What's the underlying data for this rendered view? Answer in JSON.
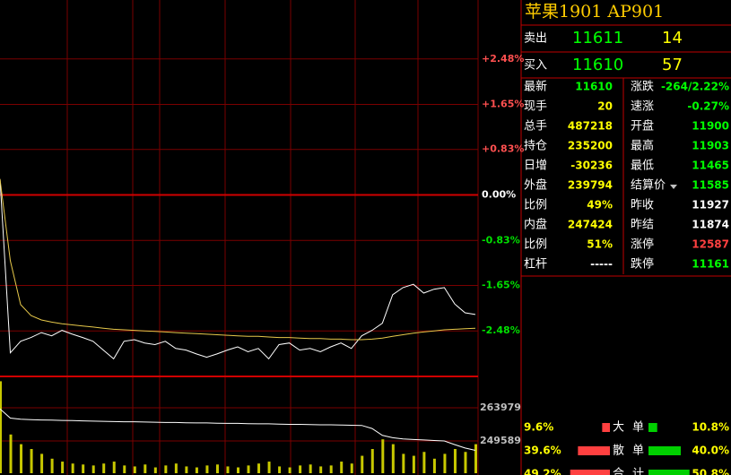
{
  "chart_data": [
    {
      "type": "line",
      "ylim": [
        -3.31,
        3.31
      ],
      "yticks": [
        {
          "value": 2.48,
          "label": "+2.48%"
        },
        {
          "value": 1.65,
          "label": "+1.65%"
        },
        {
          "value": 0.83,
          "label": "+0.83%"
        },
        {
          "value": 0,
          "label": "0.00%"
        },
        {
          "value": -0.83,
          "label": "-0.83%"
        },
        {
          "value": -1.65,
          "label": "-1.65%"
        },
        {
          "value": -2.48,
          "label": "-2.48%"
        }
      ],
      "grid": true,
      "series": [
        {
          "color": "#ffffff",
          "values": [
            0.29,
            -2.88,
            -2.67,
            -2.6,
            -2.51,
            -2.57,
            -2.47,
            -2.54,
            -2.6,
            -2.67,
            -2.83,
            -2.99,
            -2.67,
            -2.64,
            -2.7,
            -2.73,
            -2.67,
            -2.8,
            -2.83,
            -2.9,
            -2.96,
            -2.9,
            -2.83,
            -2.77,
            -2.86,
            -2.8,
            -2.99,
            -2.73,
            -2.7,
            -2.83,
            -2.8,
            -2.86,
            -2.77,
            -2.7,
            -2.8,
            -2.57,
            -2.47,
            -2.34,
            -1.82,
            -1.69,
            -1.63,
            -1.79,
            -1.72,
            -1.69,
            -1.99,
            -2.15,
            -2.18
          ]
        },
        {
          "color": "#e6c84a",
          "values": [
            0.29,
            -1.2,
            -2.0,
            -2.2,
            -2.28,
            -2.32,
            -2.35,
            -2.37,
            -2.39,
            -2.41,
            -2.43,
            -2.45,
            -2.46,
            -2.47,
            -2.48,
            -2.49,
            -2.5,
            -2.51,
            -2.52,
            -2.53,
            -2.54,
            -2.55,
            -2.56,
            -2.57,
            -2.58,
            -2.58,
            -2.59,
            -2.6,
            -2.6,
            -2.61,
            -2.62,
            -2.62,
            -2.63,
            -2.63,
            -2.64,
            -2.64,
            -2.63,
            -2.61,
            -2.58,
            -2.55,
            -2.52,
            -2.5,
            -2.48,
            -2.46,
            -2.45,
            -2.44,
            -2.43
          ]
        }
      ]
    },
    {
      "type": "bar",
      "color": "#c8c800",
      "ylim": [
        0,
        1000
      ],
      "values": [
        950,
        400,
        300,
        250,
        200,
        150,
        120,
        100,
        90,
        80,
        100,
        120,
        80,
        70,
        90,
        60,
        80,
        100,
        70,
        60,
        80,
        90,
        70,
        60,
        80,
        100,
        120,
        70,
        60,
        80,
        90,
        70,
        80,
        120,
        100,
        180,
        250,
        350,
        300,
        200,
        180,
        220,
        150,
        200,
        250,
        220,
        300
      ],
      "y2lim": [
        235585,
        277594
      ],
      "y2ticks": [
        263979,
        249589
      ],
      "series": [
        {
          "color": "#ffffff",
          "axis": "y2",
          "values": [
            263500,
            259500,
            259000,
            258800,
            258700,
            258600,
            258500,
            258400,
            258300,
            258200,
            258100,
            258000,
            257900,
            257900,
            257800,
            257700,
            257600,
            257600,
            257500,
            257400,
            257400,
            257300,
            257200,
            257200,
            257100,
            257000,
            257000,
            256900,
            256800,
            256800,
            256700,
            256600,
            256600,
            256500,
            256400,
            256300,
            255000,
            252000,
            251000,
            250500,
            250200,
            250000,
            249800,
            249600,
            248000,
            246500,
            245500
          ]
        }
      ]
    }
  ],
  "quote": {
    "title": "苹果1901  AP901",
    "book": [
      {
        "label": "卖出",
        "price": "11611",
        "volume": "14"
      },
      {
        "label": "买入",
        "price": "11610",
        "volume": "57"
      }
    ],
    "stats": [
      {
        "label": "最新",
        "value": "11610",
        "color": "#00ff00",
        "label2": "涨跌",
        "value2": "-264/2.22%",
        "color2": "#00ff00"
      },
      {
        "label": "现手",
        "value": "20",
        "color": "#ffff00",
        "label2": "速涨",
        "value2": "-0.27%",
        "color2": "#00ff00"
      },
      {
        "label": "总手",
        "value": "487218",
        "color": "#ffff00",
        "label2": "开盘",
        "value2": "11900",
        "color2": "#00ff00"
      },
      {
        "label": "持仓",
        "value": "235200",
        "color": "#ffff00",
        "label2": "最高",
        "value2": "11903",
        "color2": "#00ff00"
      },
      {
        "label": "日增",
        "value": "-30236",
        "color": "#ffff00",
        "label2": "最低",
        "value2": "11465",
        "color2": "#00ff00"
      },
      {
        "label": "外盘",
        "value": "239794",
        "color": "#ffff00",
        "label2": "结算价",
        "value2": "11585",
        "color2": "#00ff00"
      },
      {
        "label": "比例",
        "value": "49%",
        "color": "#ffff00",
        "label2": "昨收",
        "value2": "11927",
        "color2": "#ffffff"
      },
      {
        "label": "内盘",
        "value": "247424",
        "color": "#ffff00",
        "label2": "昨结",
        "value2": "11874",
        "color2": "#ffffff"
      },
      {
        "label": "比例",
        "value": "51%",
        "color": "#ffff00",
        "label2": "涨停",
        "value2": "12587",
        "color2": "#ff4040"
      },
      {
        "label": "杠杆",
        "value": "-----",
        "color": "#ffffff",
        "label2": "跌停",
        "value2": "11161",
        "color2": "#00ff00"
      }
    ],
    "flow": [
      {
        "left": 9.6,
        "left_label": "9.6%",
        "label": "大",
        "label2": "单",
        "right": 10.8,
        "right_label": "10.8%"
      },
      {
        "left": 39.6,
        "left_label": "39.6%",
        "label": "散",
        "label2": "单",
        "right": 40.0,
        "right_label": "40.0%"
      },
      {
        "left": 49.2,
        "left_label": "49.2%",
        "label": "合",
        "label2": "计",
        "right": 50.8,
        "right_label": "50.8%"
      }
    ]
  }
}
